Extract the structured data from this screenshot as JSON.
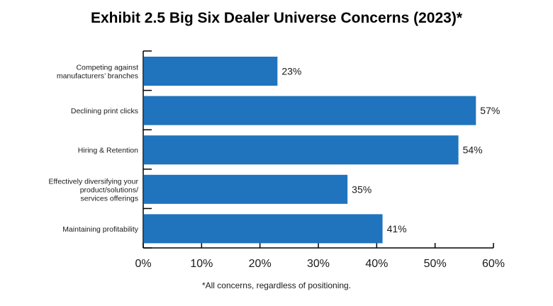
{
  "chart_data": {
    "type": "bar",
    "orientation": "horizontal",
    "title": "Exhibit 2.5 Big Six Dealer Universe Concerns (2023)*",
    "categories": [
      [
        "Competing against",
        "manufacturers’ branches"
      ],
      [
        "Declining print clicks"
      ],
      [
        "Hiring & Retention"
      ],
      [
        "Effectively diversifying your",
        "product/solutions/",
        "services offerings"
      ],
      [
        "Maintaining profitability"
      ]
    ],
    "values": [
      23,
      57,
      54,
      35,
      41
    ],
    "value_labels": [
      "23%",
      "57%",
      "54%",
      "35%",
      "41%"
    ],
    "xlim": [
      0,
      60
    ],
    "xticks": [
      0,
      10,
      20,
      30,
      40,
      50,
      60
    ],
    "xtick_labels": [
      "0%",
      "10%",
      "20%",
      "30%",
      "40%",
      "50%",
      "60%"
    ],
    "xlabel": "",
    "ylabel": "",
    "grid": false,
    "legend": "none",
    "bar_color": "#1f74bd",
    "footnote": "*All concerns, regardless of positioning."
  }
}
